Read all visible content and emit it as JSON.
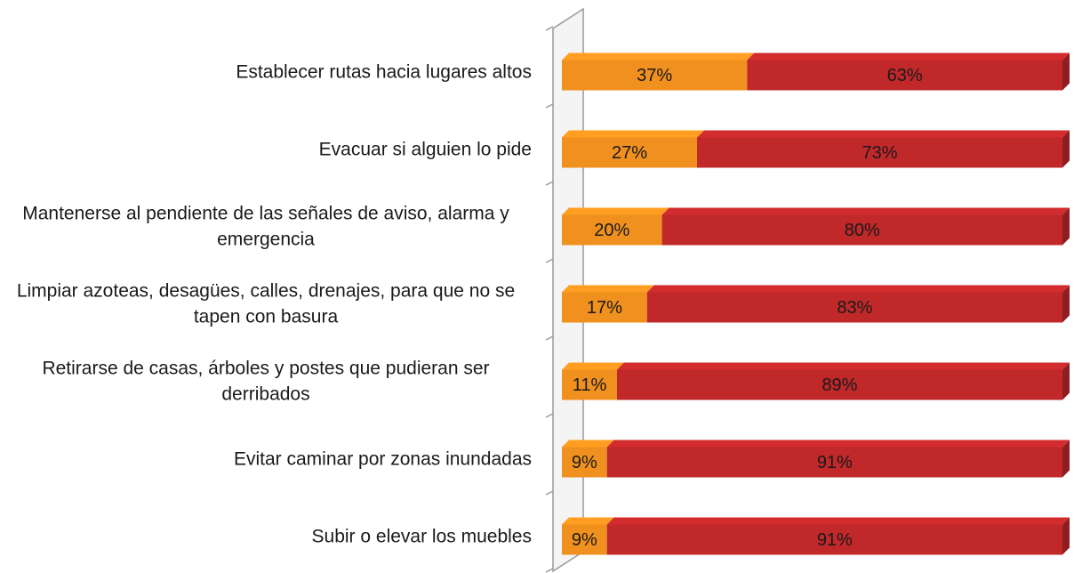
{
  "chart_data": {
    "type": "stacked-bar-horizontal",
    "categories": [
      "Establecer rutas hacia lugares altos",
      "Evacuar si alguien lo pide",
      "Mantenerse al pendiente de las señales de aviso, alarma y emergencia",
      "Limpiar azoteas, desagües, calles, drenajes, para que no se tapen con basura",
      "Retirarse de casas, árboles y postes que pudieran ser derribados",
      "Evitar caminar por zonas inundadas",
      "Subir o elevar los muebles"
    ],
    "series": [
      {
        "color": "#f0901e",
        "values": [
          37,
          27,
          20,
          17,
          11,
          9,
          9
        ],
        "value_labels": [
          "37%",
          "27%",
          "20%",
          "17%",
          "11%",
          "9%",
          "9%"
        ]
      },
      {
        "color": "#c0282a",
        "values": [
          63,
          73,
          80,
          83,
          89,
          91,
          91
        ],
        "value_labels": [
          "63%",
          "73%",
          "80%",
          "83%",
          "89%",
          "91%",
          "91%"
        ]
      }
    ],
    "xlim": [
      0,
      100
    ]
  }
}
